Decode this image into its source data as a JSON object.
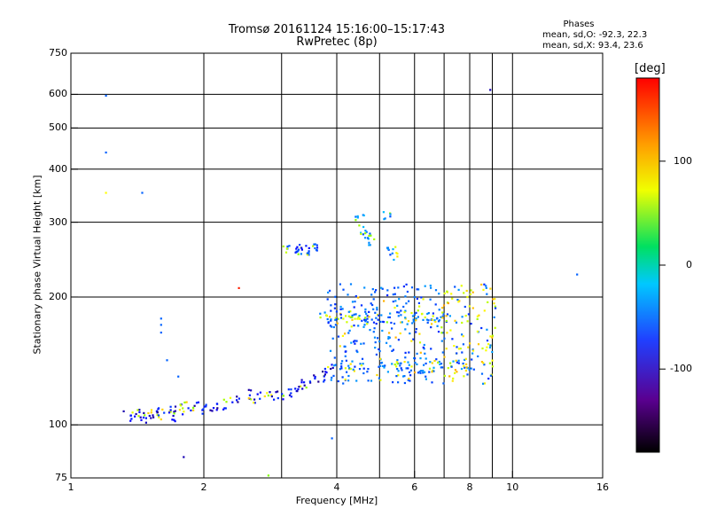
{
  "chart_data": {
    "type": "scatter",
    "title": "Tromsø 20161124 15:16:00–15:17:43",
    "subtitle": "RwPretec (8p)",
    "xlabel": "Frequency [MHz]",
    "ylabel": "Stationary phase Virtual Height [km]",
    "x_scale": "log",
    "y_scale": "log",
    "xlim": [
      1,
      16
    ],
    "ylim": [
      75,
      750
    ],
    "x_ticks": [
      "1",
      "2",
      "4",
      "6",
      "8",
      "10",
      "16"
    ],
    "y_ticks": [
      "75",
      "100",
      "200",
      "300",
      "400",
      "500",
      "600",
      "750"
    ],
    "grid": true,
    "phases": {
      "heading": "Phases",
      "o_line": "mean, sd,O: -92.3, 22.3",
      "x_line": "mean, sd,X:  93.4, 23.6"
    },
    "colorbar": {
      "label": "[deg]",
      "range": [
        -180,
        180
      ],
      "tick_labels": [
        "100",
        "0",
        "-100"
      ],
      "tick_values": [
        100,
        0,
        -100
      ]
    },
    "series": [
      {
        "x": [
          1.35,
          1.4,
          1.45,
          1.5,
          1.55,
          1.6,
          1.65,
          1.7,
          1.75,
          1.8,
          1.9,
          2.0,
          2.1,
          2.2,
          2.35,
          2.5,
          2.65,
          2.8,
          2.95,
          3.1,
          3.25,
          3.4,
          3.55,
          3.7,
          3.85
        ],
        "y": [
          105,
          106,
          104,
          106,
          107,
          106,
          108,
          105,
          109,
          110,
          111,
          109,
          110,
          112,
          115,
          118,
          116,
          120,
          117,
          119,
          121,
          125,
          128,
          130,
          135
        ]
      },
      {
        "x": [
          3.1,
          3.2,
          3.3,
          3.4,
          3.5,
          3.6
        ],
        "y": [
          258,
          259,
          258,
          259,
          258,
          259
        ]
      },
      {
        "x": [
          3.75,
          3.9,
          4.05,
          4.2,
          4.4,
          4.6,
          4.8,
          5.0,
          5.3,
          5.6,
          5.9,
          6.2,
          6.5,
          6.8,
          7.1
        ],
        "y": [
          180,
          178,
          181,
          183,
          179,
          182,
          176,
          180,
          178,
          183,
          177,
          181,
          179,
          176,
          180
        ]
      },
      {
        "x": [
          4.0,
          4.3,
          4.6,
          5.0,
          5.4,
          5.8,
          6.2,
          6.6,
          7.0,
          7.4,
          7.8
        ],
        "y": [
          138,
          137,
          136,
          139,
          138,
          137,
          136,
          138,
          137,
          139,
          138
        ]
      },
      {
        "x": [
          4.5,
          4.6,
          4.7,
          4.8,
          5.2,
          5.3,
          5.4
        ],
        "y": [
          305,
          290,
          280,
          270,
          310,
          265,
          250
        ]
      }
    ],
    "isolated_points": {
      "x": [
        1.2,
        1.2,
        1.2,
        1.45,
        1.6,
        1.6,
        1.6,
        1.65,
        1.75,
        1.8,
        2.4,
        2.8,
        3.9,
        8.9,
        14.0
      ],
      "y": [
        596,
        438,
        352,
        352,
        178,
        172,
        165,
        142,
        130,
        84,
        210,
        76,
        93,
        615,
        226
      ],
      "phase": [
        -110,
        -110,
        100,
        -110,
        -110,
        -110,
        -110,
        -110,
        -110,
        -150,
        170,
        60,
        -110,
        -150,
        -110
      ]
    }
  }
}
